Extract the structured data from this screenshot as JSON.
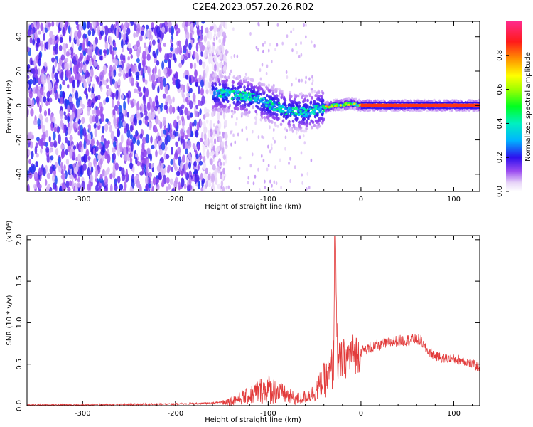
{
  "title": "C2E4.2023.057.20.26.R02",
  "chart_data": [
    {
      "type": "heatmap",
      "xlabel": "Height of straight line (km)",
      "ylabel": "Frequency (Hz)",
      "xlim": [
        -360,
        128
      ],
      "ylim": [
        -50,
        49
      ],
      "xticks": [
        -300,
        -200,
        -100,
        0,
        100
      ],
      "yticks": [
        -40,
        -20,
        0,
        20,
        40
      ],
      "colorbar": {
        "label": "Normalized spectral amplitude",
        "range": [
          0,
          1
        ],
        "ticks": [
          "0.0",
          "0.2",
          "0.4",
          "0.6",
          "0.8"
        ]
      },
      "ridge": [
        {
          "x": -150,
          "y": 7
        },
        {
          "x": -120,
          "y": 5
        },
        {
          "x": -100,
          "y": 1
        },
        {
          "x": -80,
          "y": -3
        },
        {
          "x": -60,
          "y": -4
        },
        {
          "x": -45,
          "y": -2
        },
        {
          "x": -30,
          "y": 0
        },
        {
          "x": -10,
          "y": 1
        },
        {
          "x": 0,
          "y": 0
        },
        {
          "x": 128,
          "y": 0
        }
      ],
      "noise_region_x": [
        -360,
        -155
      ]
    },
    {
      "type": "line",
      "xlabel": "Height of straight line (km)",
      "ylabel": "SNR (10 * v/v)",
      "exponent_label": "(x10⁴)",
      "xlim": [
        -360,
        128
      ],
      "ylim": [
        0,
        2.05
      ],
      "xticks": [
        -300,
        -200,
        -100,
        0,
        100
      ],
      "yticks": [
        0,
        0.5,
        1.0,
        1.5,
        2.0
      ],
      "ytick_labels": [
        "0.0",
        "0.5",
        "1.0",
        "1.5",
        "2.0"
      ],
      "series": [
        {
          "color": "#e23b3b",
          "x": [
            -360,
            -300,
            -250,
            -200,
            -160,
            -140,
            -120,
            -110,
            -100,
            -90,
            -80,
            -70,
            -60,
            -50,
            -40,
            -35,
            -30,
            -28,
            -25,
            -20,
            -10,
            0,
            10,
            20,
            30,
            40,
            50,
            60,
            65,
            70,
            80,
            90,
            100,
            110,
            120,
            128
          ],
          "values": [
            0.01,
            0.01,
            0.015,
            0.02,
            0.03,
            0.06,
            0.12,
            0.18,
            0.2,
            0.17,
            0.12,
            0.08,
            0.1,
            0.16,
            0.3,
            0.35,
            0.45,
            2.05,
            0.5,
            0.55,
            0.62,
            0.65,
            0.7,
            0.73,
            0.76,
            0.78,
            0.79,
            0.8,
            0.78,
            0.68,
            0.6,
            0.57,
            0.56,
            0.55,
            0.5,
            0.46
          ]
        }
      ]
    }
  ]
}
